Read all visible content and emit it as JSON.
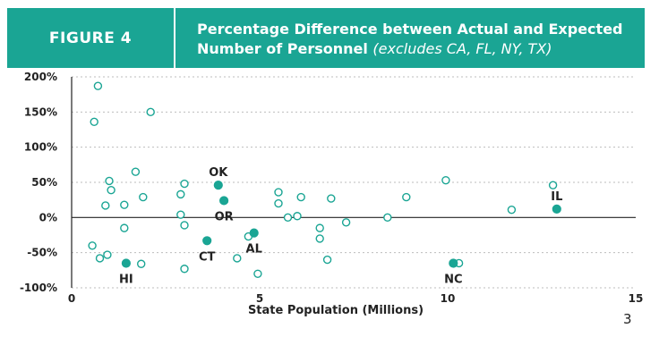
{
  "header": {
    "figure_label": "FIGURE 4",
    "title_line1": "Percentage Difference between Actual and Expected",
    "title_line2_bold": "Number of Personnel",
    "title_line2_italic": "(excludes CA, FL, NY, TX)"
  },
  "page_number": "3",
  "colors": {
    "accent": "#1aa594",
    "grid": "#bdbdbd",
    "axis": "#222222"
  },
  "chart_data": {
    "type": "scatter",
    "title": "Percentage Difference between Actual and Expected Number of Personnel (excludes CA, FL, NY, TX)",
    "xlabel": "State Population (Millions)",
    "ylabel": "",
    "xlim": [
      0,
      15
    ],
    "ylim": [
      -100,
      200
    ],
    "x_ticks": [
      0,
      5,
      10,
      15
    ],
    "y_ticks": [
      200,
      150,
      100,
      50,
      0,
      -50,
      -100
    ],
    "y_tick_labels": [
      "200%",
      "150%",
      "100%",
      "50%",
      "0%",
      "-50%",
      "-100%"
    ],
    "grid": "horizontal-dotted",
    "legend": "none",
    "series": [
      {
        "marker": "open-circle",
        "points": [
          {
            "x": 0.7,
            "y": 187
          },
          {
            "x": 0.6,
            "y": 136
          },
          {
            "x": 2.1,
            "y": 150
          },
          {
            "x": 1.7,
            "y": 65
          },
          {
            "x": 1.0,
            "y": 52
          },
          {
            "x": 1.05,
            "y": 39
          },
          {
            "x": 0.9,
            "y": 17
          },
          {
            "x": 1.4,
            "y": 18
          },
          {
            "x": 1.9,
            "y": 29
          },
          {
            "x": 3.0,
            "y": 48
          },
          {
            "x": 2.9,
            "y": 33
          },
          {
            "x": 2.9,
            "y": 4
          },
          {
            "x": 3.0,
            "y": -11
          },
          {
            "x": 1.4,
            "y": -15
          },
          {
            "x": 0.55,
            "y": -40
          },
          {
            "x": 0.75,
            "y": -58
          },
          {
            "x": 0.95,
            "y": -53
          },
          {
            "x": 1.85,
            "y": -66
          },
          {
            "x": 3.0,
            "y": -73
          },
          {
            "x": 4.4,
            "y": -58
          },
          {
            "x": 4.7,
            "y": -27
          },
          {
            "x": 4.95,
            "y": -80
          },
          {
            "x": 5.5,
            "y": 36
          },
          {
            "x": 5.5,
            "y": 20
          },
          {
            "x": 5.75,
            "y": 0
          },
          {
            "x": 6.0,
            "y": 2
          },
          {
            "x": 6.1,
            "y": 29
          },
          {
            "x": 6.6,
            "y": -15
          },
          {
            "x": 6.6,
            "y": -30
          },
          {
            "x": 6.8,
            "y": -60
          },
          {
            "x": 6.9,
            "y": 27
          },
          {
            "x": 7.3,
            "y": -7
          },
          {
            "x": 8.4,
            "y": 0
          },
          {
            "x": 8.9,
            "y": 29
          },
          {
            "x": 9.95,
            "y": 53
          },
          {
            "x": 10.3,
            "y": -65
          },
          {
            "x": 11.7,
            "y": 11
          },
          {
            "x": 12.8,
            "y": 46
          }
        ]
      },
      {
        "marker": "filled-circle",
        "points": [
          {
            "x": 3.9,
            "y": 46,
            "label": "OK",
            "label_pos": "above"
          },
          {
            "x": 4.05,
            "y": 24,
            "label": "OR",
            "label_pos": "below"
          },
          {
            "x": 4.85,
            "y": -22,
            "label": "AL",
            "label_pos": "below"
          },
          {
            "x": 3.6,
            "y": -33,
            "label": "CT",
            "label_pos": "below"
          },
          {
            "x": 1.45,
            "y": -65,
            "label": "HI",
            "label_pos": "below"
          },
          {
            "x": 10.15,
            "y": -65,
            "label": "NC",
            "label_pos": "below"
          },
          {
            "x": 12.9,
            "y": 12,
            "label": "IL",
            "label_pos": "above"
          }
        ]
      }
    ]
  }
}
